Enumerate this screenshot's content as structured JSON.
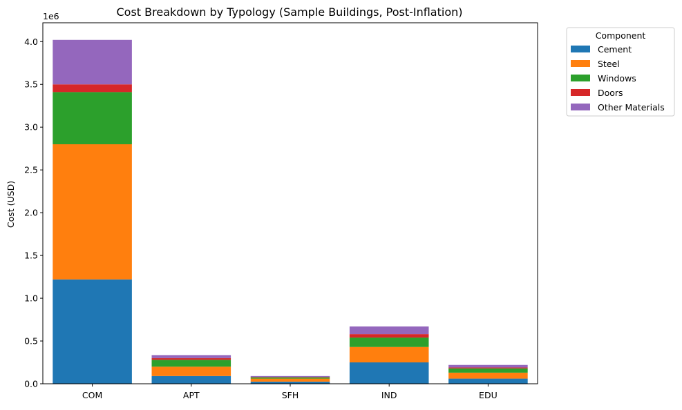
{
  "chart_data": {
    "type": "bar",
    "stacked": true,
    "title": "Cost Breakdown by Typology (Sample Buildings, Post-Inflation)",
    "xlabel": "",
    "ylabel": "Cost (USD)",
    "y_offset_text": "1e6",
    "categories": [
      "COM",
      "APT",
      "SFH",
      "IND",
      "EDU"
    ],
    "ylim": [
      0,
      4.22
    ],
    "yticks": [
      0.0,
      0.5,
      1.0,
      1.5,
      2.0,
      2.5,
      3.0,
      3.5,
      4.0
    ],
    "ytick_labels": [
      "0.0",
      "0.5",
      "1.0",
      "1.5",
      "2.0",
      "2.5",
      "3.0",
      "3.5",
      "4.0"
    ],
    "grid": false,
    "legend": {
      "title": "Component",
      "placement": "outside-top-right"
    },
    "series": [
      {
        "name": "Cement",
        "color": "#1f77b4",
        "values": [
          1.22,
          0.09,
          0.025,
          0.25,
          0.06
        ]
      },
      {
        "name": "Steel",
        "color": "#ff7f0e",
        "values": [
          1.58,
          0.11,
          0.035,
          0.18,
          0.07
        ]
      },
      {
        "name": "Windows",
        "color": "#2ca02c",
        "values": [
          0.61,
          0.08,
          0.015,
          0.11,
          0.05
        ]
      },
      {
        "name": "Doors",
        "color": "#d62728",
        "values": [
          0.09,
          0.02,
          0.005,
          0.04,
          0.01
        ]
      },
      {
        "name": "Other Materials",
        "color": "#9467bd",
        "values": [
          0.52,
          0.035,
          0.01,
          0.09,
          0.03
        ]
      }
    ]
  }
}
